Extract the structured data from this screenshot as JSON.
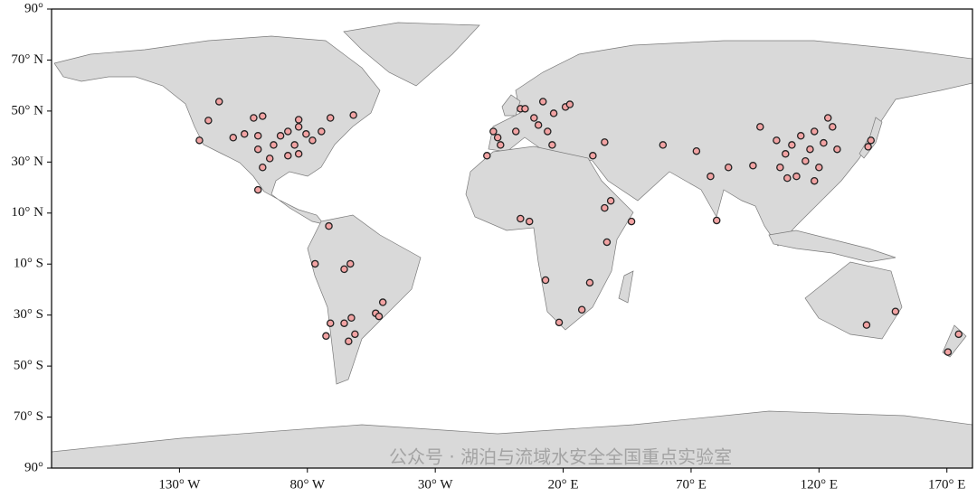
{
  "chart_data": {
    "type": "scatter",
    "watermark": "公众号 · 湖泊与流域水安全全国重点实验室",
    "color": "#f2a3a3",
    "xlim": [
      -180,
      180
    ],
    "ylim": [
      -90,
      90
    ],
    "xticks": [
      {
        "value": -130,
        "label": "130° W"
      },
      {
        "value": -80,
        "label": "80° W"
      },
      {
        "value": -30,
        "label": "30° W"
      },
      {
        "value": 20,
        "label": "20° E"
      },
      {
        "value": 70,
        "label": "70° E"
      },
      {
        "value": 120,
        "label": "120° E"
      },
      {
        "value": 170,
        "label": "170° E"
      }
    ],
    "yticks": [
      {
        "value": -90,
        "label": "90°"
      },
      {
        "value": -70,
        "label": "70° S"
      },
      {
        "value": -50,
        "label": "50° S"
      },
      {
        "value": -30,
        "label": "30° S"
      },
      {
        "value": -10,
        "label": "10° S"
      },
      {
        "value": 10,
        "label": "10° N"
      },
      {
        "value": 30,
        "label": "30° N"
      },
      {
        "value": 50,
        "label": "50° N"
      },
      {
        "value": 70,
        "label": "70° N"
      },
      {
        "value": 90,
        "label": "90°"
      }
    ],
    "x": [
      -122.2,
      -118.7,
      -114.5,
      -109,
      -104.6,
      -101,
      -97.5,
      -99.3,
      -99.3,
      -97.5,
      -94.7,
      -90.5,
      -87.6,
      -85,
      -83.4,
      -80.5,
      -78,
      -74.5,
      -71,
      -83.4,
      -87.6,
      -93.2,
      -99.3,
      -62,
      -83.4,
      -71.6,
      -77,
      -63.2,
      -65.6,
      -53.3,
      -50.5,
      -65.6,
      -62.8,
      -61.4,
      -63.9,
      -72.7,
      -71,
      -52,
      -9.8,
      -7.3,
      -5.6,
      -4.5,
      1.5,
      3.3,
      5.1,
      8.6,
      10.3,
      13.9,
      16.3,
      20.9,
      22.6,
      12.1,
      15.7,
      31.6,
      36.2,
      59,
      3.3,
      6.8,
      36.2,
      38.6,
      46.7,
      37.1,
      13.1,
      30.4,
      18.4,
      27.3,
      72.1,
      77.6,
      80,
      84.6,
      94.2,
      97,
      103.4,
      104.8,
      106.9,
      109.4,
      111.2,
      112.9,
      114.7,
      116.5,
      118.2,
      120,
      121.8,
      123.5,
      125.3,
      127.1,
      140.3,
      139.2,
      107.6,
      118.2,
      138.6,
      149.9,
      174.6,
      170.4
    ],
    "y": [
      38.5,
      46.3,
      53.7,
      39.6,
      41,
      47.3,
      48,
      40.3,
      35,
      27.9,
      31.4,
      40.3,
      42,
      36.7,
      43.8,
      41,
      38.5,
      42,
      47.3,
      33.2,
      32.5,
      36.7,
      19.1,
      48.4,
      46.6,
      4.9,
      -9.9,
      -9.9,
      -12,
      -29.3,
      -25,
      -33.2,
      -31.1,
      -37.5,
      -40.3,
      -38.2,
      -33.2,
      -30.5,
      32.5,
      42,
      39.6,
      36.7,
      42,
      50.9,
      50.9,
      47.3,
      44.5,
      42,
      49.1,
      51.6,
      52.6,
      53.7,
      36.7,
      32.5,
      37.8,
      36.7,
      7.8,
      6.7,
      12,
      14.8,
      6.7,
      -1.4,
      -16.3,
      -17.3,
      -32.9,
      -27.9,
      34.3,
      24.4,
      7.1,
      27.9,
      28.6,
      43.8,
      38.5,
      27.9,
      33.2,
      36.7,
      24.4,
      40.3,
      30.4,
      35,
      42,
      27.9,
      37.5,
      47.3,
      43.8,
      35,
      38.5,
      36,
      23.7,
      22.6,
      -33.9,
      -28.6,
      -37.5,
      -44.5
    ]
  }
}
